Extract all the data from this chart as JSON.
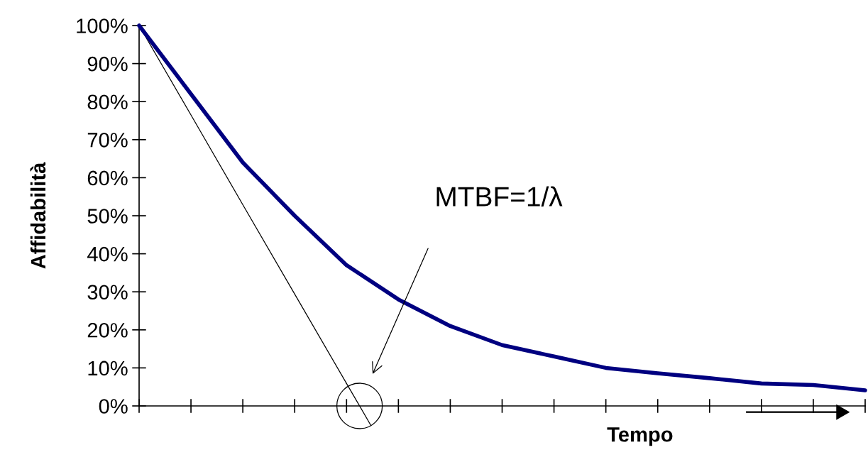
{
  "chart_data": {
    "type": "line",
    "xlabel": "Tempo",
    "ylabel": "Affidabilità",
    "categories": [
      null,
      null,
      null,
      null,
      null,
      null,
      null,
      null,
      null,
      null,
      null,
      null,
      null,
      null,
      null
    ],
    "series": [
      {
        "color": "#000080",
        "values": [
          100,
          82,
          64,
          50,
          37,
          28,
          21,
          16,
          13,
          10,
          8.6,
          7.3,
          5.9,
          5.5,
          4.1
        ]
      },
      {
        "type": "line",
        "color": "#000000",
        "values": [
          100,
          76.5,
          52.9,
          29.4,
          5.9,
          null,
          null,
          null,
          null,
          null,
          null,
          null,
          null,
          null,
          null
        ]
      }
    ],
    "annotations": [
      "MTBF=1/λ"
    ],
    "ylim": [
      0,
      100
    ],
    "yticks": [
      {
        "value": 0,
        "label": "0%"
      },
      {
        "value": 10,
        "label": "10%"
      },
      {
        "value": 20,
        "label": "20%"
      },
      {
        "value": 30,
        "label": "30%"
      },
      {
        "value": 40,
        "label": "40%"
      },
      {
        "value": 50,
        "label": "50%"
      },
      {
        "value": 60,
        "label": "60%"
      },
      {
        "value": 70,
        "label": "70%"
      },
      {
        "value": 80,
        "label": "80%"
      },
      {
        "value": 90,
        "label": "90%"
      },
      {
        "value": 100,
        "label": "100%"
      }
    ],
    "tick_labels": "y",
    "marker": "none",
    "line_style": "solid"
  }
}
